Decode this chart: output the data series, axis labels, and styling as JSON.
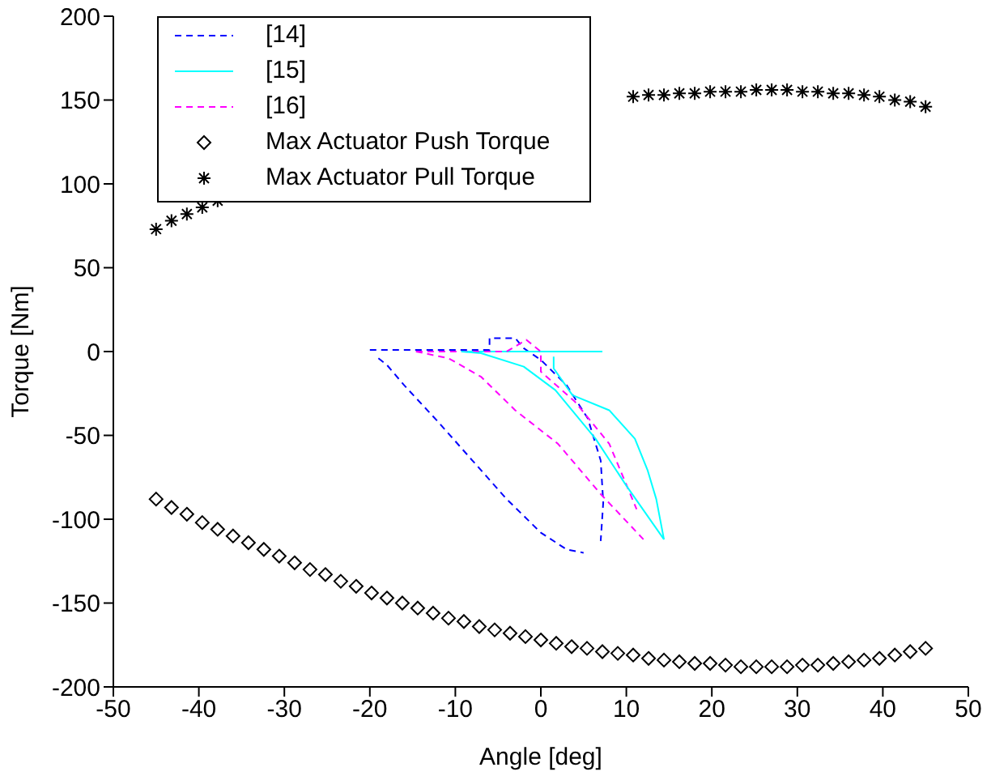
{
  "chart_data": {
    "type": "line",
    "xlabel": "Angle [deg]",
    "ylabel": "Torque [Nm]",
    "xlim": [
      -50,
      50
    ],
    "ylim": [
      -200,
      200
    ],
    "xticks": [
      -50,
      -40,
      -30,
      -20,
      -10,
      0,
      10,
      20,
      30,
      40,
      50
    ],
    "yticks": [
      -200,
      -150,
      -100,
      -50,
      0,
      50,
      100,
      150,
      200
    ],
    "grid": false,
    "legend": "top left",
    "series": [
      {
        "name": "[14]",
        "color": "#0000ff",
        "line_style": "dashed",
        "marker": "none",
        "x": [
          -20,
          -12,
          -6,
          -6,
          -3,
          -2,
          0,
          3,
          5.5,
          7,
          7.3,
          7
        ],
        "values": [
          1,
          1,
          1,
          8,
          8,
          2,
          -5,
          -20,
          -40,
          -65,
          -90,
          -113
        ]
      },
      {
        "name": "[15]",
        "color": "#00ffff",
        "line_style": "solid",
        "marker": "none",
        "x": [
          -9.3,
          7.2
        ],
        "values": [
          0,
          0
        ]
      },
      {
        "name": "[16]",
        "color": "#ff00ff",
        "line_style": "dashed",
        "marker": "none",
        "x": [
          -14.6,
          -4,
          -1.7,
          0,
          0,
          4,
          8,
          11.2
        ],
        "values": [
          0,
          0,
          7,
          0,
          -12,
          -30,
          -55,
          -94
        ]
      },
      {
        "name": "Max Actuator Push Torque",
        "type": "scatter",
        "color": "#000000",
        "marker": "diamond",
        "x": [
          -45,
          -43.2,
          -41.4,
          -39.6,
          -37.8,
          -36,
          -34.2,
          -32.4,
          -30.6,
          -28.8,
          -27,
          -25.2,
          -23.4,
          -21.6,
          -19.8,
          -18,
          -16.2,
          -14.4,
          -12.6,
          -10.8,
          -9,
          -7.2,
          -5.4,
          -3.6,
          -1.8,
          0,
          1.8,
          3.6,
          5.4,
          7.2,
          9,
          10.8,
          12.6,
          14.4,
          16.2,
          18,
          19.8,
          21.6,
          23.4,
          25.2,
          27,
          28.8,
          30.6,
          32.4,
          34.2,
          36,
          37.8,
          39.6,
          41.4,
          43.2,
          45
        ],
        "values": [
          -88,
          -93,
          -97,
          -102,
          -106,
          -110,
          -114,
          -118,
          -122,
          -126,
          -130,
          -133,
          -137,
          -140,
          -144,
          -147,
          -150,
          -153,
          -156,
          -159,
          -161,
          -164,
          -166,
          -168,
          -170,
          -172,
          -174,
          -176,
          -177,
          -179,
          -180,
          -181,
          -183,
          -184,
          -185,
          -186,
          -186,
          -187,
          -188,
          -188,
          -188,
          -188,
          -187,
          -187,
          -186,
          -185,
          -184,
          -183,
          -181,
          -179,
          -177
        ]
      },
      {
        "name": "Max Actuator Pull Torque",
        "type": "scatter",
        "color": "#000000",
        "marker": "cross",
        "x": [
          -45,
          -43.2,
          -41.4,
          -39.6,
          -37.8,
          -36,
          -34.2,
          -32.4,
          -30.6,
          -28.8,
          -27,
          -25.2,
          -23.4,
          -21.6,
          -19.8,
          -18,
          -16.2,
          -14.4,
          -12.6,
          -10.8,
          -9,
          -7.2,
          -5.4,
          -3.6,
          -1.8,
          0,
          1.8,
          3.6,
          5.4,
          7.2,
          9,
          10.8,
          12.6,
          14.4,
          16.2,
          18,
          19.8,
          21.6,
          23.4,
          25.2,
          27,
          28.8,
          30.6,
          32.4,
          34.2,
          36,
          37.8,
          39.6,
          41.4,
          43.2,
          45
        ],
        "values": [
          73,
          78,
          82,
          86,
          90,
          null,
          null,
          null,
          null,
          null,
          null,
          null,
          null,
          null,
          null,
          null,
          null,
          null,
          null,
          null,
          null,
          null,
          null,
          null,
          null,
          null,
          null,
          null,
          null,
          null,
          null,
          152,
          153,
          153,
          154,
          154,
          155,
          155,
          155,
          156,
          156,
          156,
          155,
          155,
          154,
          154,
          153,
          152,
          150,
          149,
          146
        ]
      },
      {
        "color": "#0000ff",
        "line_style": "dashed",
        "marker": "none",
        "x": [
          -19,
          -18,
          -16,
          -12,
          -8,
          -4,
          0,
          3,
          5
        ],
        "values": [
          -4,
          -8,
          -20,
          -42,
          -65,
          -88,
          -108,
          -118,
          -120
        ]
      },
      {
        "color": "#00ffff",
        "line_style": "solid",
        "marker": "none",
        "x": [
          -9.3,
          -7,
          -2,
          1.7,
          6.4,
          10,
          14.4
        ],
        "values": [
          0,
          -1,
          -9,
          -23,
          -52,
          -80,
          -112
        ]
      },
      {
        "color": "#00ffff",
        "line_style": "solid",
        "marker": "none",
        "x": [
          1.5,
          1.5,
          3.7,
          8,
          11,
          12.5,
          13.5,
          14.4
        ],
        "values": [
          -3,
          -10,
          -26,
          -35,
          -52,
          -71,
          -88,
          -112
        ]
      },
      {
        "color": "#ff00ff",
        "line_style": "dashed",
        "marker": "none",
        "x": [
          -14.6,
          -10.8,
          -7,
          -3,
          2,
          7,
          12
        ],
        "values": [
          0,
          -4,
          -15,
          -35,
          -55,
          -85,
          -112
        ]
      }
    ]
  }
}
